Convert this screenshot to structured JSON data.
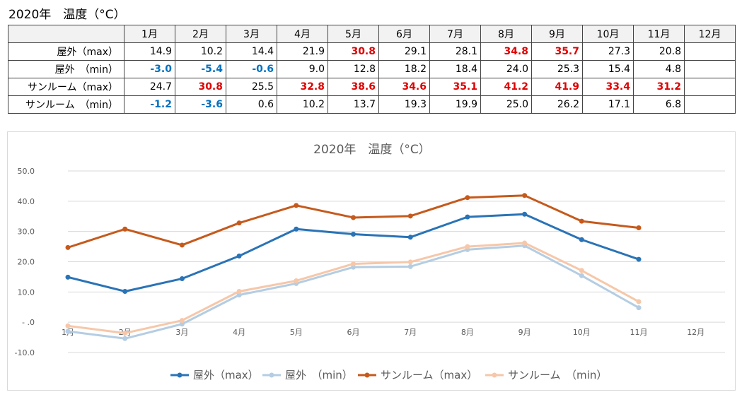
{
  "page_title": "2020年　温度（°C）",
  "table": {
    "columns": [
      "",
      "1月",
      "2月",
      "3月",
      "4月",
      "5月",
      "6月",
      "7月",
      "8月",
      "9月",
      "10月",
      "11月",
      "12月"
    ],
    "rows": [
      {
        "label": "屋外（max）",
        "values": [
          "14.9",
          "10.2",
          "14.4",
          "21.9",
          "30.8",
          "29.1",
          "28.1",
          "34.8",
          "35.7",
          "27.3",
          "20.8",
          ""
        ],
        "styles": [
          "",
          "",
          "",
          "",
          "hot",
          "",
          "",
          "hot",
          "hot",
          "",
          "",
          ""
        ]
      },
      {
        "label": "屋外　（min）",
        "values": [
          "-3.0",
          "-5.4",
          "-0.6",
          "9.0",
          "12.8",
          "18.2",
          "18.4",
          "24.0",
          "25.3",
          "15.4",
          "4.8",
          ""
        ],
        "styles": [
          "cold",
          "cold",
          "cold",
          "",
          "",
          "",
          "",
          "",
          "",
          "",
          "",
          ""
        ]
      },
      {
        "label": "サンルーム（max）",
        "values": [
          "24.7",
          "30.8",
          "25.5",
          "32.8",
          "38.6",
          "34.6",
          "35.1",
          "41.2",
          "41.9",
          "33.4",
          "31.2",
          ""
        ],
        "styles": [
          "",
          "hot",
          "",
          "hot",
          "hot",
          "hot",
          "hot",
          "hot",
          "hot",
          "hot",
          "hot",
          ""
        ]
      },
      {
        "label": "サンルーム　（min）",
        "values": [
          "-1.2",
          "-3.6",
          "0.6",
          "10.2",
          "13.7",
          "19.3",
          "19.9",
          "25.0",
          "26.2",
          "17.1",
          "6.8",
          ""
        ],
        "styles": [
          "cold",
          "cold",
          "",
          "",
          "",
          "",
          "",
          "",
          "",
          "",
          "",
          ""
        ]
      }
    ]
  },
  "chart_data": {
    "type": "line",
    "title": "2020年　温度（°C）",
    "categories": [
      "1月",
      "2月",
      "3月",
      "4月",
      "5月",
      "6月",
      "7月",
      "8月",
      "9月",
      "10月",
      "11月",
      "12月"
    ],
    "ylim": [
      -10,
      50
    ],
    "yticks": [
      -10,
      0,
      10,
      20,
      30,
      40,
      50
    ],
    "ytick_labels": [
      "-10.0",
      "-  .0",
      "10.0",
      "20.0",
      "30.0",
      "40.0",
      "50.0"
    ],
    "grid": true,
    "legend": "bottom",
    "series": [
      {
        "name": "屋外（max）",
        "color": "#2a73b6",
        "values": [
          14.9,
          10.2,
          14.4,
          21.9,
          30.8,
          29.1,
          28.1,
          34.8,
          35.7,
          27.3,
          20.8,
          null
        ]
      },
      {
        "name": "屋外　（min）",
        "color": "#b4cde3",
        "values": [
          -3.0,
          -5.4,
          -0.6,
          9.0,
          12.8,
          18.2,
          18.4,
          24.0,
          25.3,
          15.4,
          4.8,
          null
        ]
      },
      {
        "name": "サンルーム（max）",
        "color": "#c55a1c",
        "values": [
          24.7,
          30.8,
          25.5,
          32.8,
          38.6,
          34.6,
          35.1,
          41.2,
          41.9,
          33.4,
          31.2,
          null
        ]
      },
      {
        "name": "サンルーム　（min）",
        "color": "#f6c7a9",
        "values": [
          -1.2,
          -3.6,
          0.6,
          10.2,
          13.7,
          19.3,
          19.9,
          25.0,
          26.2,
          17.1,
          6.8,
          null
        ]
      }
    ]
  }
}
